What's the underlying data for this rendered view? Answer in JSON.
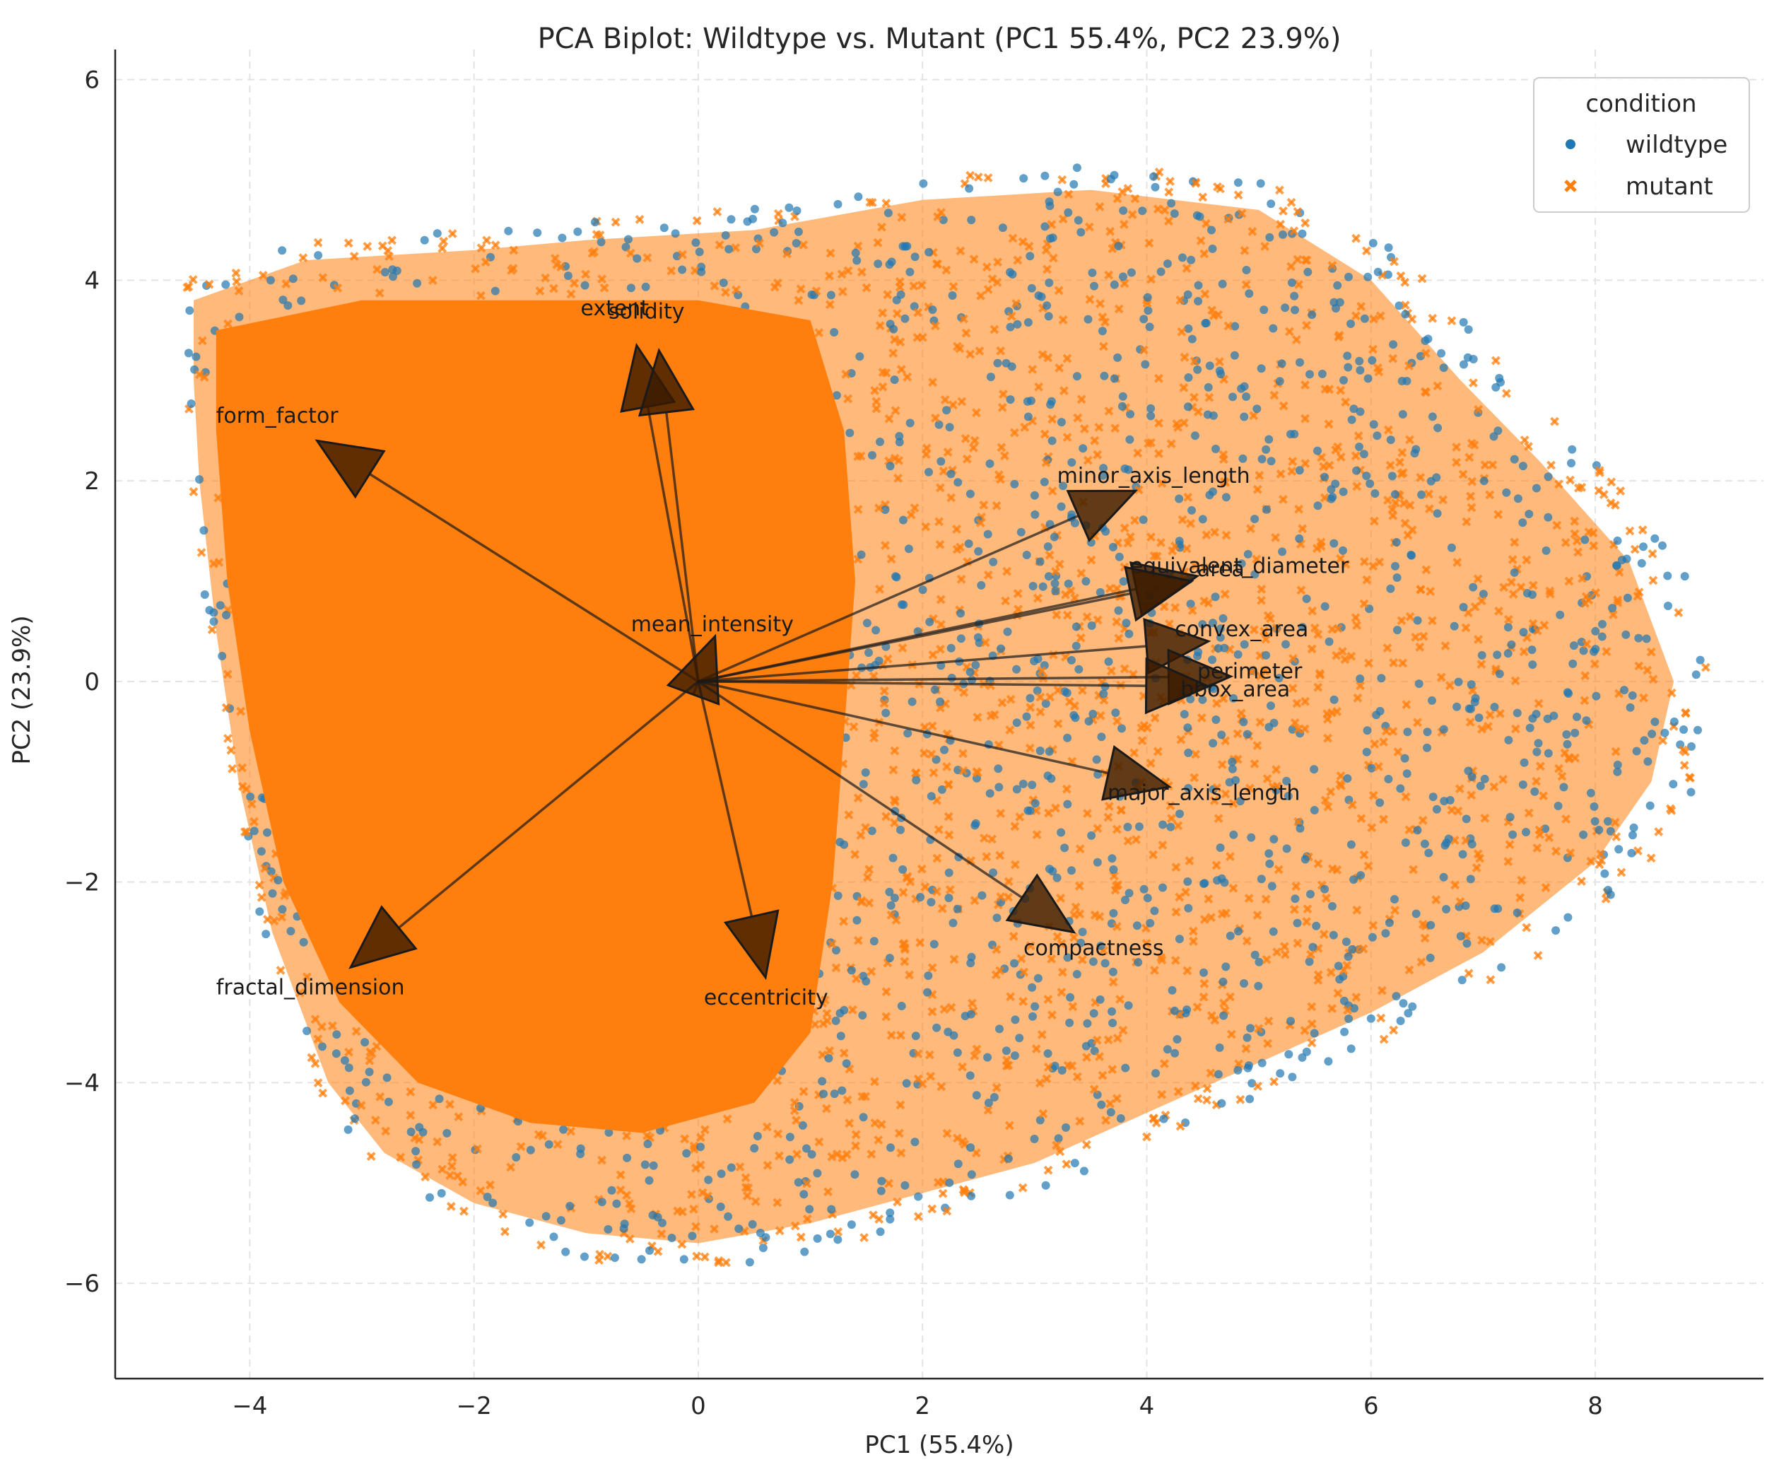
{
  "chart_data": {
    "type": "scatter",
    "title": "PCA Biplot: Wildtype vs. Mutant (PC1 55.4%, PC2 23.9%)",
    "xlabel": "PC1 (55.4%)",
    "ylabel": "PC2 (23.9%)",
    "xlim": [
      -5.2,
      9.5
    ],
    "ylim": [
      -6.95,
      6.3
    ],
    "xticks": [
      -4,
      -2,
      0,
      2,
      4,
      6,
      8
    ],
    "xtick_labels": [
      "−4",
      "−2",
      "0",
      "2",
      "4",
      "6",
      "8"
    ],
    "yticks": [
      -6,
      -4,
      -2,
      0,
      2,
      4,
      6
    ],
    "ytick_labels": [
      "−6",
      "−4",
      "−2",
      "0",
      "2",
      "4",
      "6"
    ],
    "grid": true,
    "legend": {
      "title": "condition",
      "placement": "top-right",
      "entries": [
        {
          "name": "wildtype",
          "marker": "circle",
          "color": "#1f77b4"
        },
        {
          "name": "mutant",
          "marker": "x",
          "color": "#ff7f0e"
        }
      ]
    },
    "series": [
      {
        "name": "wildtype",
        "color": "#1f77b4",
        "marker": "circle"
      },
      {
        "name": "mutant",
        "color": "#ff7f0e",
        "marker": "x"
      }
    ],
    "point_cloud": {
      "dense_core_color": "#ff7f0e",
      "outline": [
        [
          -4.5,
          3.8
        ],
        [
          -3.5,
          4.2
        ],
        [
          -2,
          4.3
        ],
        [
          -1,
          4.4
        ],
        [
          0.5,
          4.5
        ],
        [
          2,
          4.8
        ],
        [
          3.5,
          4.9
        ],
        [
          5,
          4.7
        ],
        [
          6,
          4.0
        ],
        [
          6.8,
          3.0
        ],
        [
          7.5,
          2.2
        ],
        [
          8.3,
          1.2
        ],
        [
          8.7,
          0
        ],
        [
          8.5,
          -1.0
        ],
        [
          8.0,
          -1.8
        ],
        [
          7.0,
          -2.7
        ],
        [
          6.0,
          -3.3
        ],
        [
          5,
          -3.8
        ],
        [
          4,
          -4.3
        ],
        [
          3,
          -4.8
        ],
        [
          2,
          -5.1
        ],
        [
          1,
          -5.4
        ],
        [
          0,
          -5.6
        ],
        [
          -1,
          -5.5
        ],
        [
          -2,
          -5.2
        ],
        [
          -2.8,
          -4.7
        ],
        [
          -3.3,
          -4.0
        ],
        [
          -3.8,
          -2.5
        ],
        [
          -4.1,
          -1.0
        ],
        [
          -4.3,
          0.5
        ],
        [
          -4.45,
          2.0
        ],
        [
          -4.5,
          3.0
        ]
      ],
      "core": [
        [
          -4.3,
          3.5
        ],
        [
          -3,
          3.8
        ],
        [
          -1.5,
          3.8
        ],
        [
          0,
          3.8
        ],
        [
          1,
          3.6
        ],
        [
          1.3,
          2.5
        ],
        [
          1.4,
          1
        ],
        [
          1.3,
          -0.5
        ],
        [
          1.2,
          -2
        ],
        [
          1,
          -3.5
        ],
        [
          0.5,
          -4.2
        ],
        [
          -0.5,
          -4.5
        ],
        [
          -1.5,
          -4.4
        ],
        [
          -2.5,
          -4.0
        ],
        [
          -3.2,
          -3.2
        ],
        [
          -3.7,
          -2
        ],
        [
          -4.0,
          -0.5
        ],
        [
          -4.2,
          1
        ],
        [
          -4.3,
          2.5
        ]
      ]
    },
    "loadings": [
      {
        "name": "extent",
        "end": [
          -0.55,
          3.35
        ],
        "label_at": [
          -1.05,
          3.65
        ]
      },
      {
        "name": "solidity",
        "end": [
          -0.35,
          3.3
        ],
        "label_at": [
          -0.8,
          3.62
        ]
      },
      {
        "name": "form_factor",
        "end": [
          -3.4,
          2.4
        ],
        "label_at": [
          -4.3,
          2.58
        ]
      },
      {
        "name": "minor_axis_length",
        "end": [
          3.9,
          1.9
        ],
        "label_at": [
          3.2,
          1.98
        ]
      },
      {
        "name": "equivalent_diameter",
        "end": [
          4.45,
          1.05
        ],
        "label_at": [
          3.85,
          1.08
        ]
      },
      {
        "name": "area",
        "end": [
          4.4,
          1.0
        ],
        "label_at": [
          4.45,
          1.05
        ]
      },
      {
        "name": "mean_intensity",
        "end": [
          0.15,
          0.45
        ],
        "label_at": [
          -0.6,
          0.5
        ]
      },
      {
        "name": "convex_area",
        "end": [
          4.55,
          0.4
        ],
        "label_at": [
          4.25,
          0.45
        ]
      },
      {
        "name": "perimeter",
        "end": [
          4.75,
          0.05
        ],
        "label_at": [
          4.45,
          0.03
        ]
      },
      {
        "name": "bbox_area",
        "end": [
          4.55,
          -0.05
        ],
        "label_at": [
          4.3,
          -0.15
        ]
      },
      {
        "name": "major_axis_length",
        "end": [
          4.2,
          -1.05
        ],
        "label_at": [
          3.65,
          -1.18
        ]
      },
      {
        "name": "compactness",
        "end": [
          3.35,
          -2.5
        ],
        "label_at": [
          2.9,
          -2.73
        ]
      },
      {
        "name": "fractal_dimension",
        "end": [
          -3.1,
          -2.85
        ],
        "label_at": [
          -4.3,
          -3.12
        ]
      },
      {
        "name": "eccentricity",
        "end": [
          0.6,
          -2.95
        ],
        "label_at": [
          0.05,
          -3.22
        ]
      }
    ]
  }
}
